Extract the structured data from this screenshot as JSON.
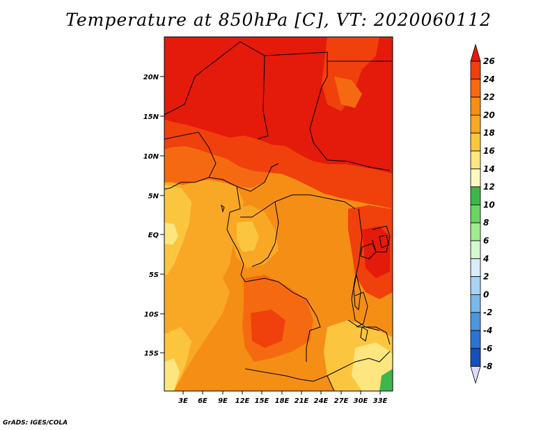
{
  "title": "Temperature at 850hPa [C], VT: 2020060112",
  "credit": "GrADS: IGES/COLA",
  "map": {
    "lat_ticks": [
      "20N",
      "15N",
      "10N",
      "5N",
      "EQ",
      "5S",
      "10S",
      "15S"
    ],
    "lon_ticks": [
      "3E",
      "6E",
      "9E",
      "12E",
      "15E",
      "18E",
      "21E",
      "24E",
      "27E",
      "30E",
      "33E"
    ]
  },
  "colorbar": {
    "levels": [
      "26",
      "24",
      "22",
      "20",
      "18",
      "16",
      "14",
      "12",
      "10",
      "8",
      "6",
      "4",
      "2",
      "0",
      "-2",
      "-4",
      "-6",
      "-8"
    ],
    "colors": [
      "#e41a0a",
      "#f0400c",
      "#f56a10",
      "#f58e14",
      "#f9a826",
      "#fbc63e",
      "#fde580",
      "#fffac0",
      "#3cb84a",
      "#68d660",
      "#a0ec90",
      "#d4f8d0",
      "#d8ecfa",
      "#a8d4f4",
      "#78b8ec",
      "#4c98e0",
      "#2a74d4",
      "#1450bc",
      "#0c2ea0",
      "#0a147a"
    ]
  }
}
